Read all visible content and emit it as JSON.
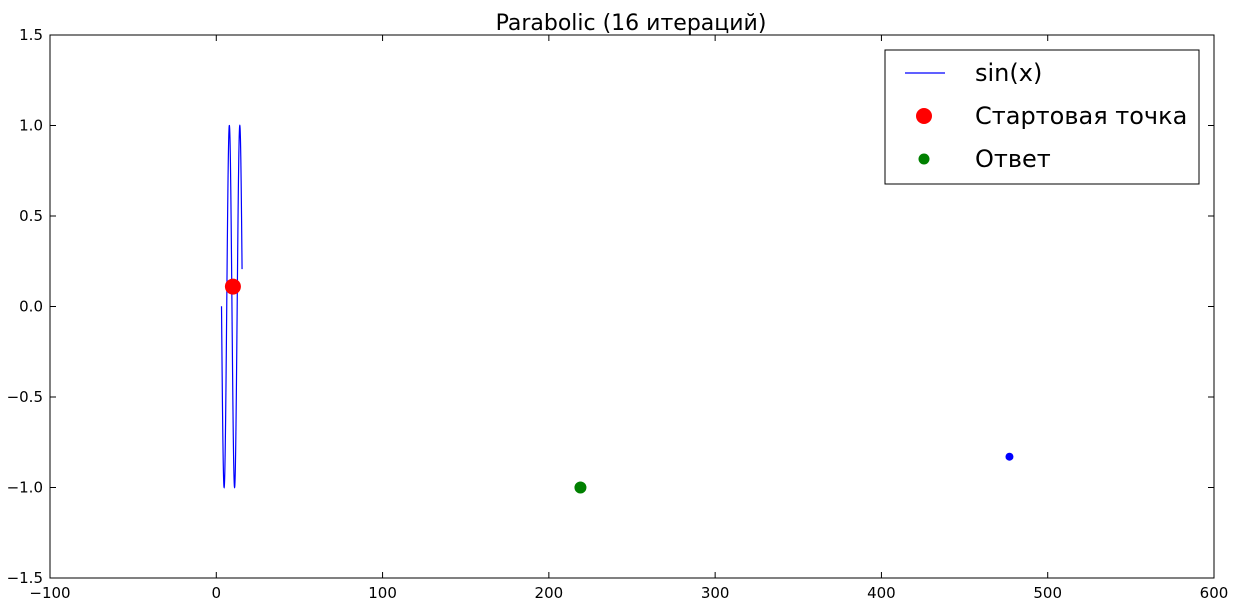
{
  "chart_data": {
    "type": "line",
    "title": "Parabolic (16 итераций)",
    "xlabel": "",
    "ylabel": "",
    "xlim": [
      -100,
      600
    ],
    "ylim": [
      -1.5,
      1.5
    ],
    "xticks": [
      -100,
      0,
      100,
      200,
      300,
      400,
      500,
      600
    ],
    "xtick_labels": [
      "−100",
      "0",
      "100",
      "200",
      "300",
      "400",
      "500",
      "600"
    ],
    "yticks": [
      -1.5,
      -1.0,
      -0.5,
      0.0,
      0.5,
      1.0,
      1.5
    ],
    "ytick_labels": [
      "−1.5",
      "−1.0",
      "−0.5",
      "0.0",
      "0.5",
      "1.0",
      "1.5"
    ],
    "grid": false,
    "legend_position": "top-right",
    "series": [
      {
        "name": "sin(x)",
        "kind": "line",
        "color": "#0000ff",
        "function": "sin(x)",
        "x_range": [
          3.14,
          15.5
        ]
      },
      {
        "name": "Стартовая точка",
        "kind": "scatter",
        "color": "#ff0000",
        "marker": "large-circle",
        "points": [
          [
            10,
            0.11
          ]
        ]
      },
      {
        "name": "Ответ",
        "kind": "scatter",
        "color": "#008000",
        "marker": "circle",
        "points": [
          [
            219,
            -1.0
          ]
        ]
      },
      {
        "kind": "scatter",
        "color": "#0000ff",
        "marker": "small-circle",
        "points": [
          [
            477,
            -0.83
          ]
        ]
      }
    ]
  }
}
